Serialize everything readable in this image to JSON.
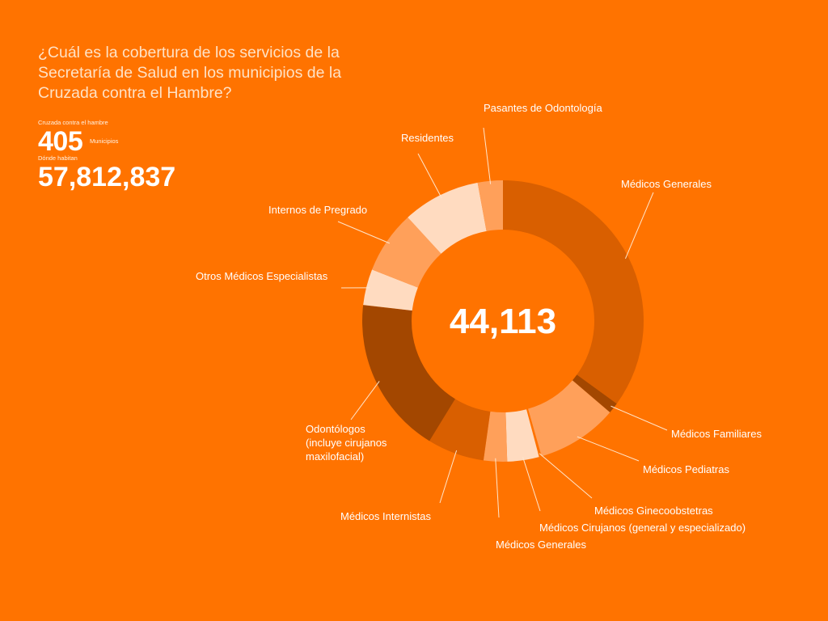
{
  "header": {
    "question": "¿Cuál es la cobertura de los servicios de la Secretaría de Salud en los municipios de la Cruzada contra el Hambre?"
  },
  "stats": {
    "cruzada_label": "Cruzada contra el hambre",
    "municipios_value": "405",
    "municipios_unit": "Municipios",
    "donde_label": "Dónde habitan",
    "population_value": "57,812,837"
  },
  "chart_data": {
    "type": "pie",
    "donut": true,
    "total_label": "44,113",
    "slices": [
      {
        "label": "Médicos Generales",
        "value": 36.4,
        "color": "#d95f00"
      },
      {
        "label": "Médicos Familiares",
        "value": 1.3,
        "color": "#a34700"
      },
      {
        "label": "Médicos Pediatras",
        "value": 9.7,
        "color": "#ffa05a"
      },
      {
        "label": "Médicos Ginecoobstetras",
        "value": 0.3,
        "color": "#ff7300"
      },
      {
        "label": "Médicos Cirujanos (general y especializado)",
        "value": 3.8,
        "color": "#ffdbc0"
      },
      {
        "label": "Médicos Generales",
        "value": 2.8,
        "color": "#ffa05a"
      },
      {
        "label": "Médicos Internistas",
        "value": 6.8,
        "color": "#d95f00"
      },
      {
        "label": "Odontólogos (incluye cirujanos maxilofacial)",
        "value": 18.8,
        "color": "#a34700"
      },
      {
        "label": "Otros Médicos Especialistas",
        "value": 4.3,
        "color": "#ffdbc0"
      },
      {
        "label": "Internos de Pregrado",
        "value": 7.5,
        "color": "#ffa05a"
      },
      {
        "label": "Residentes",
        "value": 9.3,
        "color": "#ffdbc0"
      },
      {
        "label": "Pasantes de Odontología",
        "value": 3.0,
        "color": "#ffa05a"
      }
    ]
  }
}
